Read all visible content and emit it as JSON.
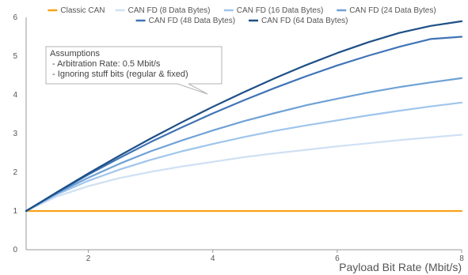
{
  "chart_data": {
    "type": "line",
    "title": "",
    "xlabel": "Payload Bit Rate (Mbit/s)",
    "ylabel": "",
    "xlim": [
      1,
      8
    ],
    "ylim": [
      0,
      6
    ],
    "x_ticks": [
      "2",
      "4",
      "6",
      "8"
    ],
    "y_ticks": [
      "0",
      "1",
      "2",
      "3",
      "4",
      "5",
      "6"
    ],
    "grid": false,
    "legend_position": "top",
    "x": [
      1,
      1.5,
      2,
      2.5,
      3,
      3.5,
      4,
      4.5,
      5,
      5.5,
      6,
      6.5,
      7,
      7.5,
      8
    ],
    "series": [
      {
        "name": "Classic CAN",
        "color": "#f7a21b",
        "values": [
          1,
          1,
          1,
          1,
          1,
          1,
          1,
          1,
          1,
          1,
          1,
          1,
          1,
          1,
          1
        ]
      },
      {
        "name": "CAN FD (8 Data Bytes)",
        "color": "#cfe0f3",
        "values": [
          1,
          1.38,
          1.64,
          1.85,
          2.01,
          2.15,
          2.27,
          2.39,
          2.49,
          2.58,
          2.67,
          2.75,
          2.83,
          2.9,
          2.97
        ]
      },
      {
        "name": "CAN FD (16 Data Bytes)",
        "color": "#9fc5ec",
        "values": [
          1,
          1.43,
          1.78,
          2.07,
          2.32,
          2.54,
          2.73,
          2.91,
          3.07,
          3.21,
          3.34,
          3.47,
          3.59,
          3.7,
          3.8
        ]
      },
      {
        "name": "CAN FD (24 Data Bytes)",
        "color": "#6fa2d6",
        "values": [
          1,
          1.46,
          1.86,
          2.22,
          2.54,
          2.82,
          3.08,
          3.32,
          3.53,
          3.73,
          3.9,
          4.06,
          4.2,
          4.32,
          4.43
        ]
      },
      {
        "name": "CAN FD (48 Data Bytes)",
        "color": "#3f74b6",
        "values": [
          1,
          1.48,
          1.94,
          2.37,
          2.78,
          3.16,
          3.52,
          3.86,
          4.18,
          4.48,
          4.76,
          5.01,
          5.24,
          5.44,
          5.5
        ]
      },
      {
        "name": "CAN FD (64 Data Bytes)",
        "color": "#1d4f86",
        "values": [
          1,
          1.49,
          1.97,
          2.43,
          2.87,
          3.29,
          3.69,
          4.07,
          4.43,
          4.77,
          5.08,
          5.36,
          5.6,
          5.78,
          5.9
        ]
      }
    ],
    "annotation": {
      "title": "Assumptions",
      "lines": [
        " - Arbitration Rate: 0.5 Mbit/s",
        " - Ignoring stuff bits (regular & fixed)"
      ]
    }
  }
}
